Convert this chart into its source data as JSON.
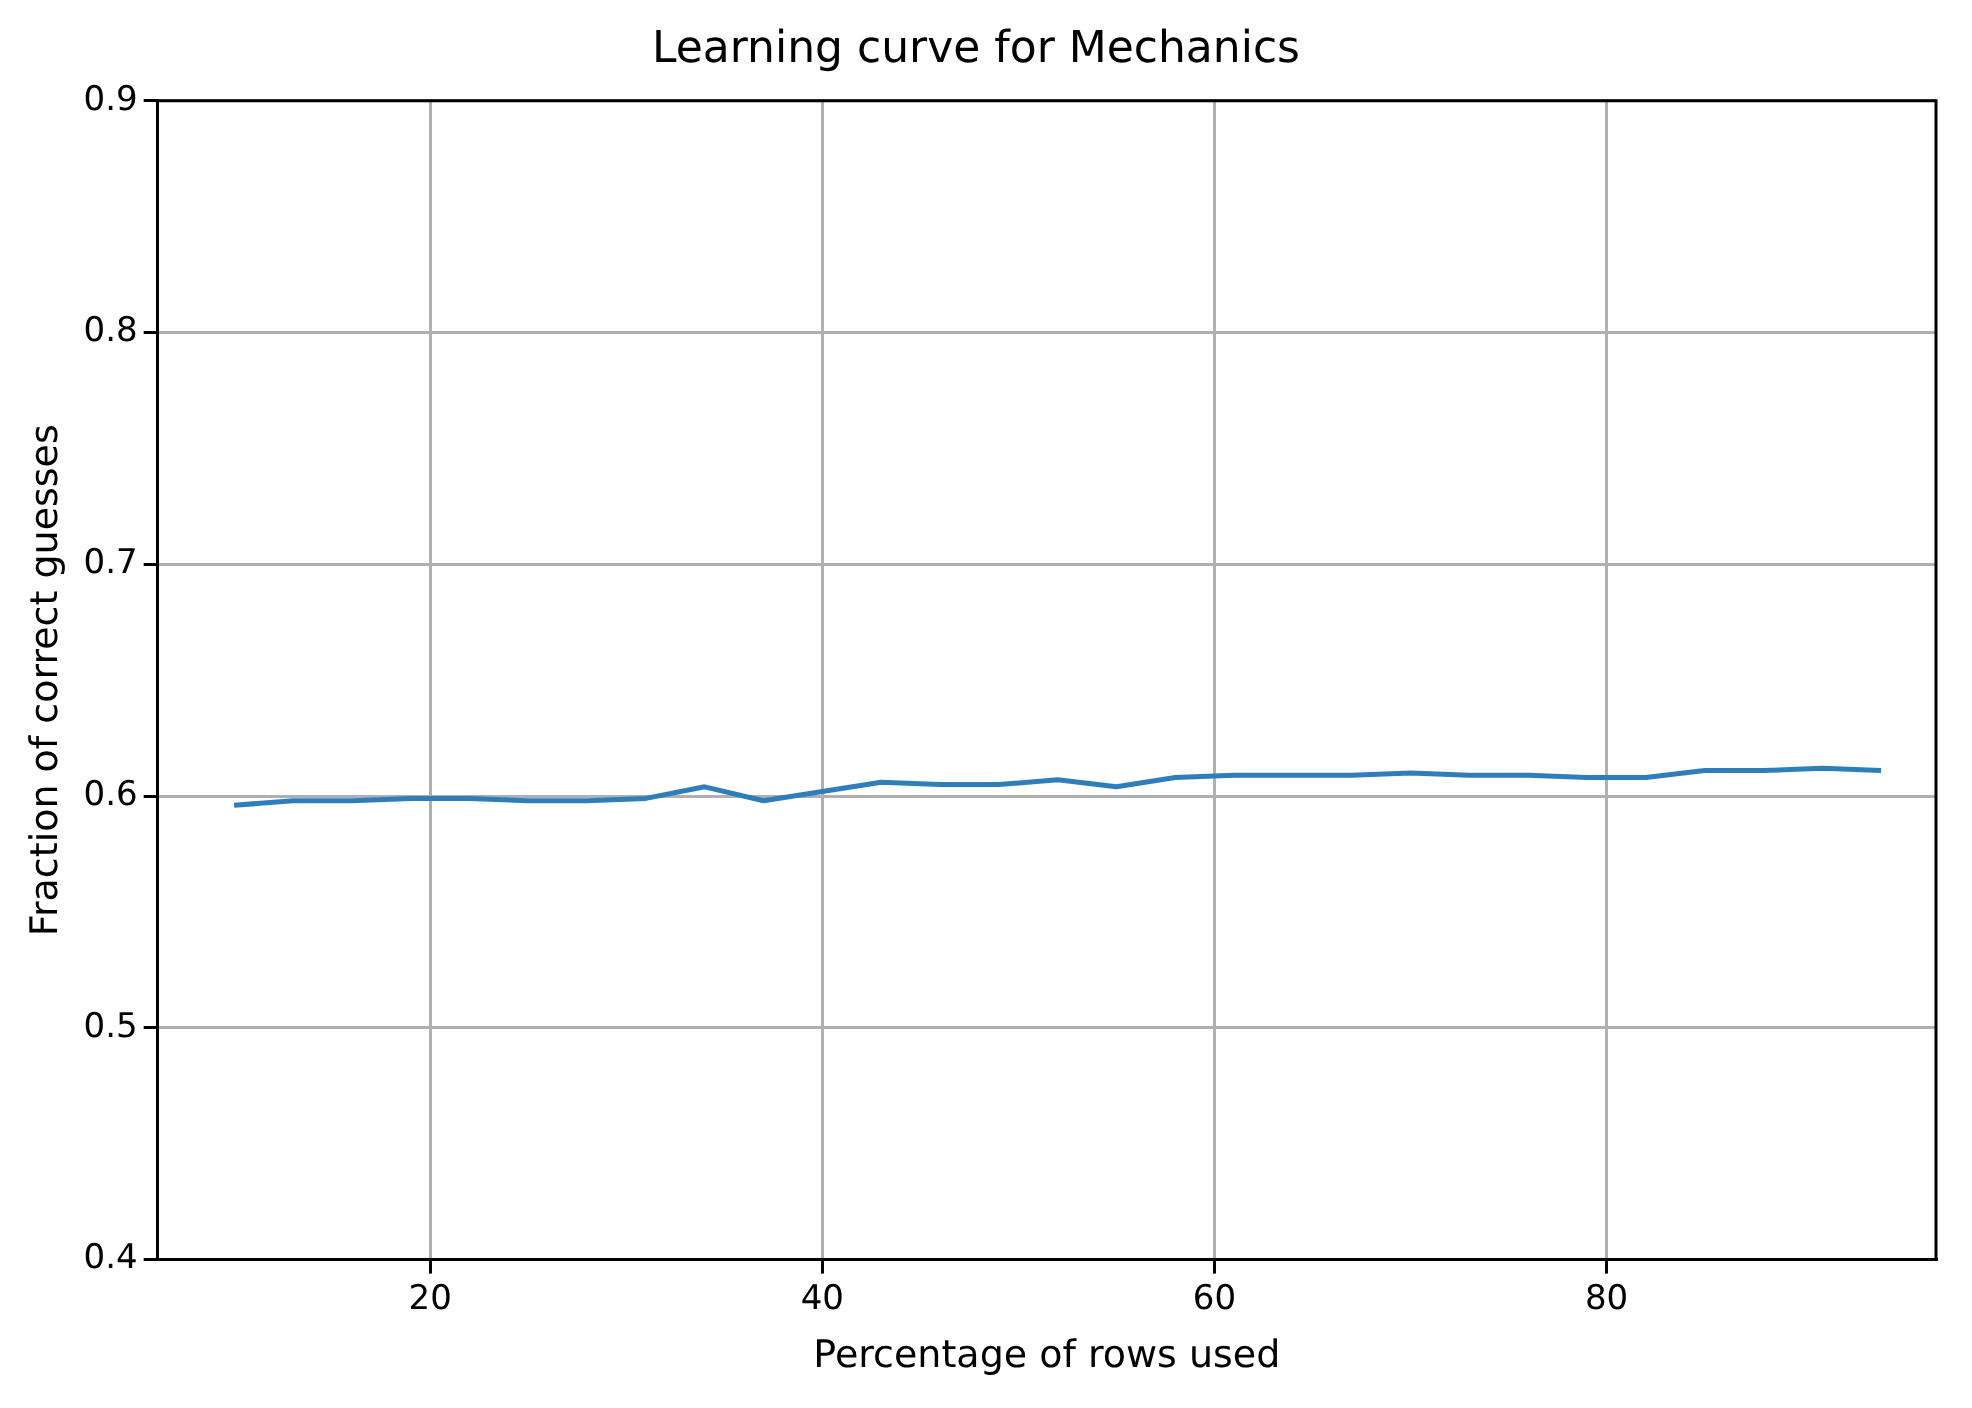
{
  "chart_data": {
    "type": "line",
    "title": "Learning curve for Mechanics",
    "xlabel": "Percentage of rows used",
    "ylabel": "Fraction of correct guesses",
    "x": [
      10,
      13,
      16,
      19,
      22,
      25,
      28,
      31,
      34,
      37,
      40,
      43,
      46,
      49,
      52,
      55,
      58,
      61,
      64,
      67,
      70,
      73,
      76,
      79,
      82,
      85,
      88,
      91,
      94
    ],
    "series": [
      {
        "color": "#2f7ebc",
        "values": [
          0.596,
          0.598,
          0.598,
          0.599,
          0.599,
          0.598,
          0.598,
          0.599,
          0.604,
          0.598,
          0.602,
          0.606,
          0.605,
          0.605,
          0.607,
          0.604,
          0.608,
          0.609,
          0.609,
          0.609,
          0.61,
          0.609,
          0.609,
          0.608,
          0.608,
          0.611,
          0.611,
          0.612,
          0.611
        ]
      }
    ],
    "xlim": [
      6.1,
      96.8
    ],
    "xticks": [
      20,
      40,
      60,
      80
    ],
    "ylim": [
      0.4,
      0.9
    ],
    "yticks": [
      0.4,
      0.5,
      0.6,
      0.7,
      0.8,
      0.9
    ],
    "grid": true,
    "legend": false,
    "marker": "none",
    "line_style": "solid"
  }
}
